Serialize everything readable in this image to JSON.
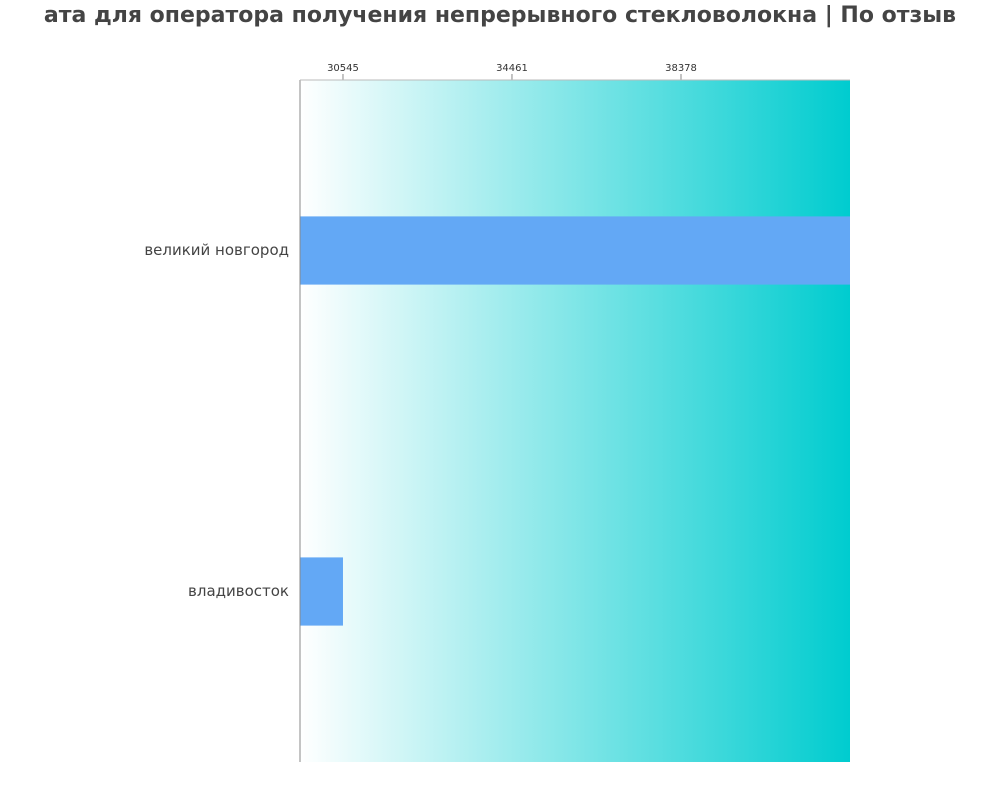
{
  "chart_data": {
    "type": "bar",
    "orientation": "horizontal",
    "title": "ата для оператора получения непрерывного стекловолокна | По отзыв",
    "categories": [
      "великий новгород",
      "владивосток"
    ],
    "values": [
      42294,
      30545
    ],
    "color": "#63a8f5",
    "background_gradient": [
      "#ffffff",
      "#00cccf"
    ],
    "xlim": [
      29549,
      42294
    ],
    "xticks": [
      30545,
      34461,
      38378
    ]
  }
}
